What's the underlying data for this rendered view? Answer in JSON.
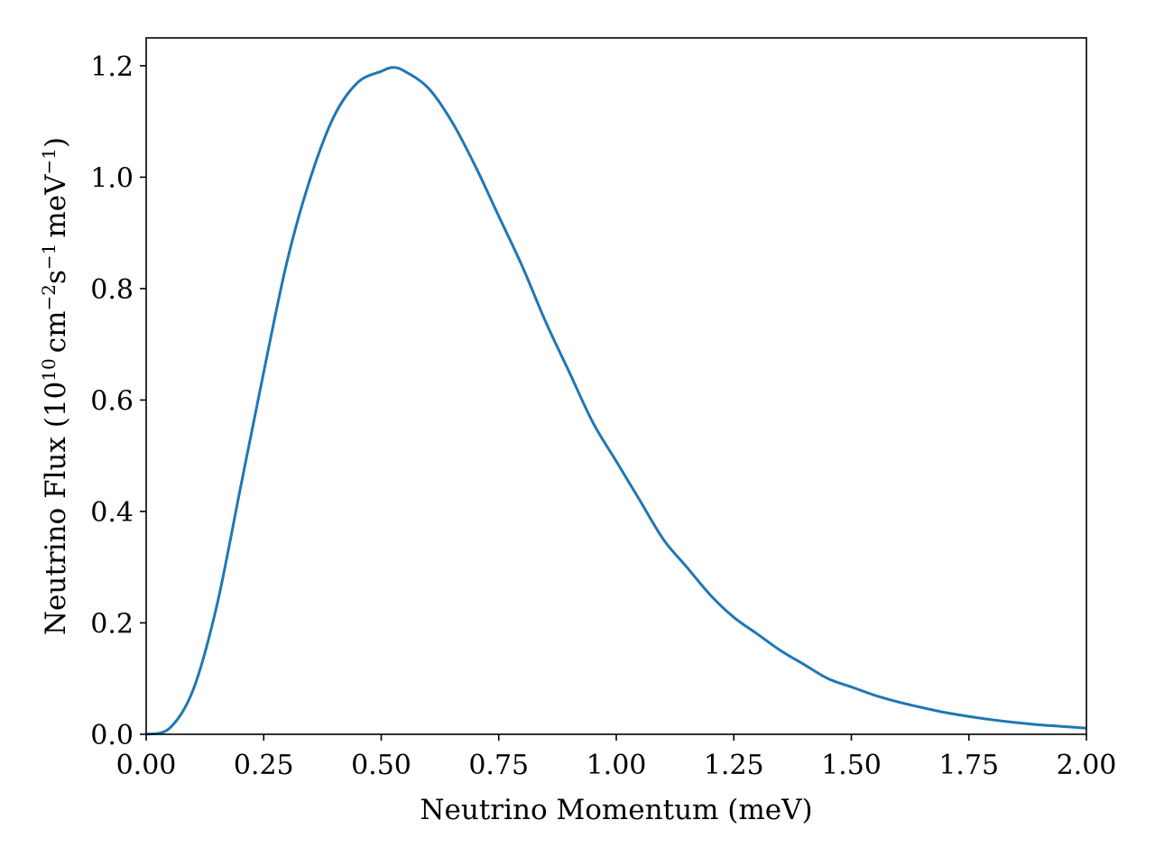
{
  "chart_data": {
    "type": "line",
    "title": "",
    "xlabel": "Neutrino Momentum (meV)",
    "ylabel": {
      "prefix": "Neutrino Flux (10",
      "exp_10": "10",
      "cm": "cm",
      "exp_cm": "−2",
      "s": "s",
      "exp_s": "−1",
      "mev": "meV",
      "exp_mev": "−1",
      "suffix": ")"
    },
    "xlim": [
      0,
      2
    ],
    "ylim": [
      0,
      1.25
    ],
    "xticks": [
      0,
      0.25,
      0.5,
      0.75,
      1.0,
      1.25,
      1.5,
      1.75,
      2.0
    ],
    "xtick_labels": [
      "0.00",
      "0.25",
      "0.50",
      "0.75",
      "1.00",
      "1.25",
      "1.50",
      "1.75",
      "2.00"
    ],
    "yticks": [
      0,
      0.2,
      0.4,
      0.6,
      0.8,
      1.0,
      1.2
    ],
    "ytick_labels": [
      "0.0",
      "0.2",
      "0.4",
      "0.6",
      "0.8",
      "1.0",
      "1.2"
    ],
    "grid": false,
    "legend": "none",
    "series": [
      {
        "color": "#1f77b4",
        "x": [
          0.0,
          0.05,
          0.1,
          0.15,
          0.2,
          0.25,
          0.3,
          0.35,
          0.4,
          0.45,
          0.5,
          0.525,
          0.55,
          0.6,
          0.65,
          0.7,
          0.75,
          0.8,
          0.85,
          0.9,
          0.95,
          1.0,
          1.05,
          1.1,
          1.15,
          1.2,
          1.25,
          1.3,
          1.35,
          1.4,
          1.45,
          1.5,
          1.55,
          1.6,
          1.65,
          1.7,
          1.75,
          1.8,
          1.85,
          1.9,
          1.95,
          2.0
        ],
        "y": [
          0.0,
          0.011,
          0.08,
          0.23,
          0.44,
          0.65,
          0.85,
          1.0,
          1.11,
          1.17,
          1.19,
          1.197,
          1.19,
          1.16,
          1.1,
          1.02,
          0.93,
          0.84,
          0.74,
          0.65,
          0.56,
          0.49,
          0.42,
          0.35,
          0.3,
          0.25,
          0.21,
          0.18,
          0.15,
          0.125,
          0.1,
          0.085,
          0.07,
          0.058,
          0.048,
          0.039,
          0.032,
          0.026,
          0.021,
          0.017,
          0.014,
          0.011
        ]
      }
    ]
  }
}
